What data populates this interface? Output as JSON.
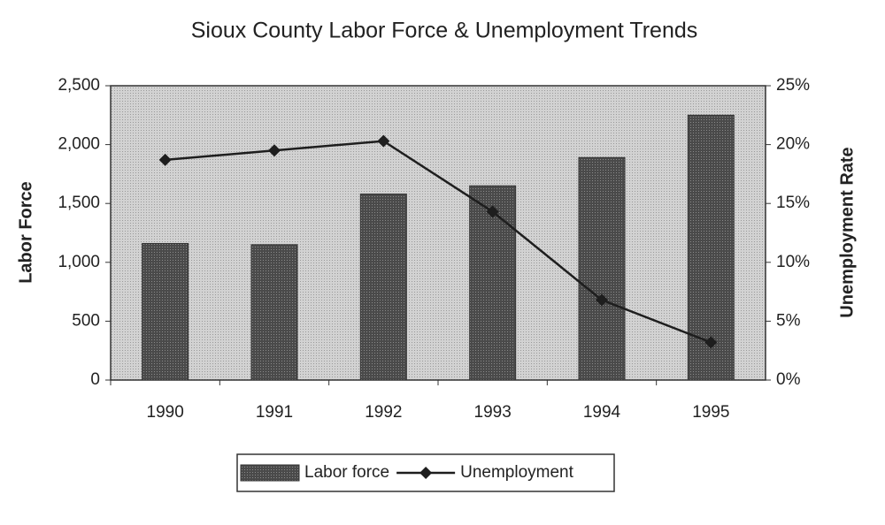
{
  "chart_data": {
    "type": "bar",
    "title": "Sioux County Labor Force & Unemployment Trends",
    "y_label": "Labor Force",
    "y2_label": "Unemployment Rate",
    "categories": [
      "1990",
      "1991",
      "1992",
      "1993",
      "1994",
      "1995"
    ],
    "series": [
      {
        "name": "Labor force",
        "type": "bar",
        "color": "#4a4a4a",
        "values": [
          1160,
          1150,
          1580,
          1650,
          1890,
          2250
        ]
      },
      {
        "name": "Unemployment",
        "type": "line",
        "axis": "y2",
        "color": "#1e1e1e",
        "values": [
          18.7,
          19.5,
          20.3,
          14.3,
          6.8,
          3.2
        ]
      }
    ],
    "ylim": [
      0,
      2500
    ],
    "yticks": [
      0,
      500,
      {
        "value": 1000,
        "label": "1,000"
      },
      {
        "value": 1500,
        "label": "1,500"
      },
      {
        "value": 2000,
        "label": "2,000"
      },
      {
        "value": 2500,
        "label": "2,500"
      }
    ],
    "y2lim": [
      0,
      25
    ],
    "y2ticks": [
      {
        "value": 0,
        "label": "0%"
      },
      {
        "value": 5,
        "label": "5%"
      },
      {
        "value": 10,
        "label": "10%"
      },
      {
        "value": 15,
        "label": "15%"
      },
      {
        "value": 20,
        "label": "20%"
      },
      {
        "value": 25,
        "label": "25%"
      }
    ],
    "legend": "bottom"
  }
}
